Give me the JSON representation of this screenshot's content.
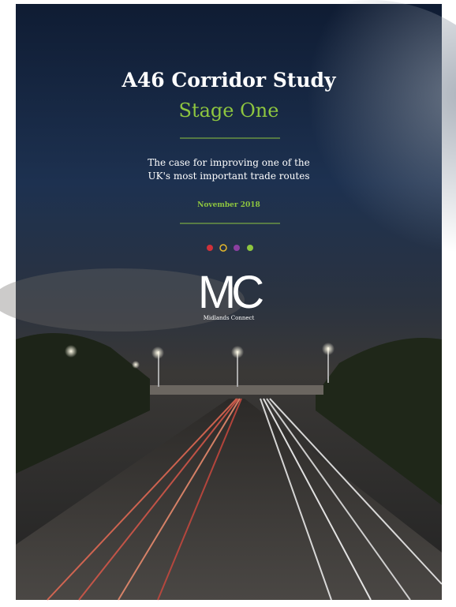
{
  "cover": {
    "title": "A46 Corridor Study",
    "subtitle": "Stage One",
    "description": [
      "The case for improving one of the",
      "UK's most important trade routes"
    ],
    "date": "November 2018",
    "logo": {
      "mark": "MC",
      "name": "Midlands Connect"
    }
  }
}
